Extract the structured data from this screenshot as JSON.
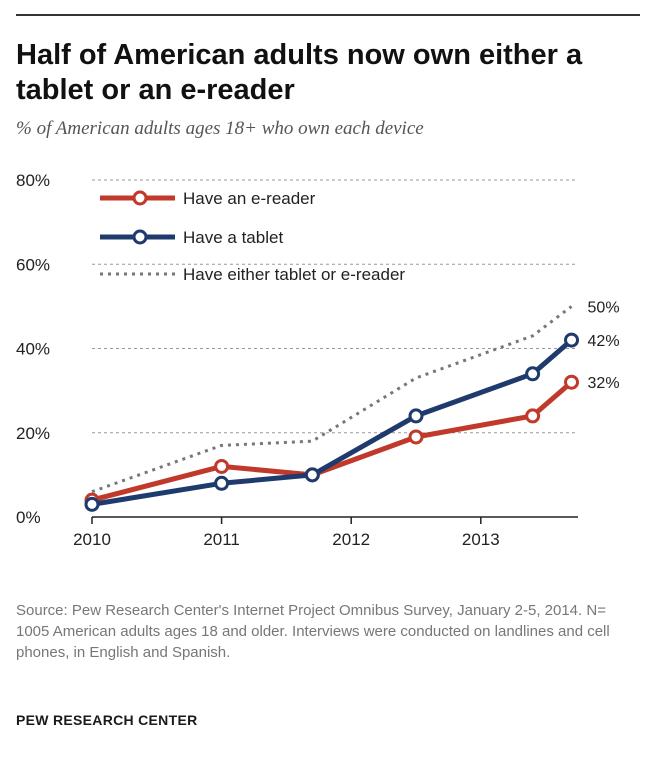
{
  "chart_data": {
    "type": "line",
    "title": "Half of American adults now own either a tablet or an e-reader",
    "subtitle": "% of American adults ages 18+ who own each device",
    "xlabel": "",
    "ylabel": "",
    "xlim": [
      2010,
      2013.75
    ],
    "ylim": [
      0,
      80
    ],
    "x_ticks": [
      "2010",
      "2011",
      "2012",
      "2013"
    ],
    "y_ticks": [
      "0%",
      "20%",
      "40%",
      "60%",
      "80%"
    ],
    "grid": true,
    "legend_position": "top-left",
    "series": [
      {
        "name": "Have an e-reader",
        "color": "#c0392b",
        "style": "solid-markers",
        "x": [
          2010.0,
          2011.0,
          2011.7,
          2012.5,
          2013.4,
          2013.7
        ],
        "values": [
          4,
          12,
          10,
          19,
          24,
          32
        ],
        "end_label": "32%"
      },
      {
        "name": "Have a tablet",
        "color": "#1f3b6e",
        "style": "solid-markers",
        "x": [
          2010.0,
          2011.0,
          2011.7,
          2012.5,
          2013.4,
          2013.7
        ],
        "values": [
          3,
          8,
          10,
          24,
          34,
          42
        ],
        "end_label": "42%"
      },
      {
        "name": "Have either tablet or e-reader",
        "color": "#777777",
        "style": "dotted",
        "x": [
          2010.0,
          2011.0,
          2011.7,
          2012.5,
          2013.4,
          2013.7
        ],
        "values": [
          6,
          17,
          18,
          33,
          43,
          50
        ],
        "end_label": "50%"
      }
    ]
  },
  "source_note": "Source: Pew Research Center's Internet Project Omnibus Survey, January 2-5, 2014. N= 1005 American adults ages 18 and older. Interviews were conducted on landlines and cell phones, in English and Spanish.",
  "brand": "PEW RESEARCH CENTER"
}
